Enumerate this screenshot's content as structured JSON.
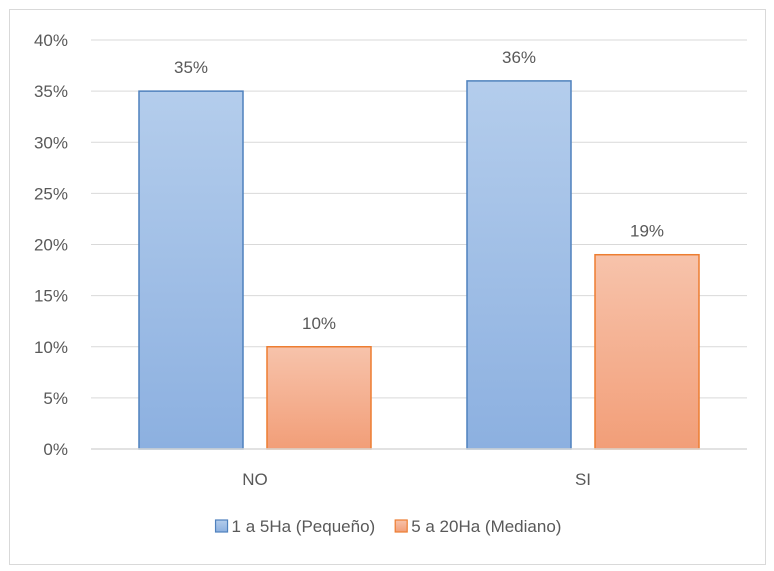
{
  "chart_data": {
    "type": "bar",
    "categories": [
      "NO",
      "SI"
    ],
    "series": [
      {
        "name": "1 a 5Ha (Pequeño)",
        "values": [
          35,
          36
        ],
        "labels": [
          "35%",
          "36%"
        ],
        "color": "#9dbde5",
        "color_top": "#b4cdec",
        "color_bottom": "#8cb0e0",
        "border": "#4f81bd"
      },
      {
        "name": "5 a 20Ha (Mediano)",
        "values": [
          10,
          19
        ],
        "labels": [
          "10%",
          "19%"
        ],
        "color": "#f4ae8f",
        "color_top": "#f7c3ab",
        "color_bottom": "#f29e78",
        "border": "#ed7d31"
      }
    ],
    "ylim": [
      0,
      40
    ],
    "yticks": [
      0,
      5,
      10,
      15,
      20,
      25,
      30,
      35,
      40
    ],
    "ytick_labels": [
      "0%",
      "5%",
      "10%",
      "15%",
      "20%",
      "25%",
      "30%",
      "35%",
      "40%"
    ],
    "grid": true,
    "gridline_color": "#d9d9d9",
    "legend_position": "bottom",
    "title": "",
    "xlabel": "",
    "ylabel": ""
  }
}
